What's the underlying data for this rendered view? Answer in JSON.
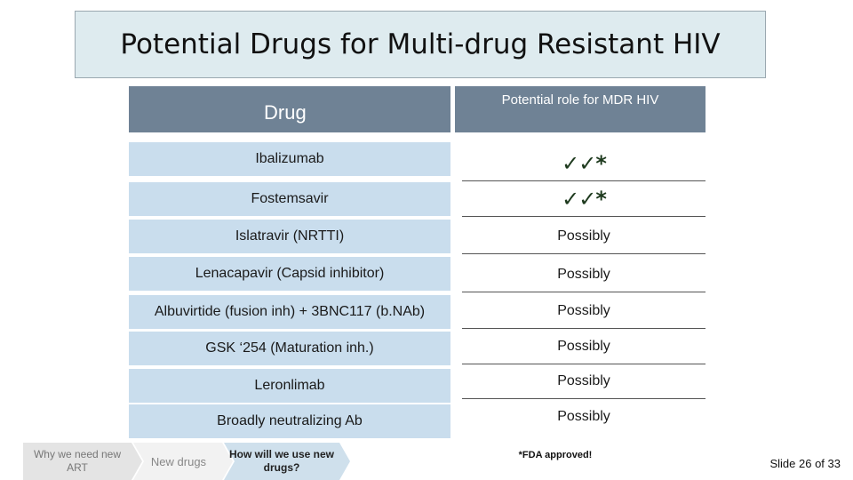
{
  "title": "Potential Drugs for Multi-drug Resistant HIV",
  "table": {
    "header_drug": "Drug",
    "header_role": "Potential role for MDR HIV",
    "rows": [
      {
        "drug": "Ibalizumab",
        "role": "✓✓*"
      },
      {
        "drug": "Fostemsavir",
        "role": "✓✓*"
      },
      {
        "drug": "Islatravir (NRTTI)",
        "role": "Possibly"
      },
      {
        "drug": "Lenacapavir (Capsid inhibitor)",
        "role": "Possibly"
      },
      {
        "drug": "Albuvirtide (fusion inh) + 3BNC117 (b.NAb)",
        "role": "Possibly"
      },
      {
        "drug": "GSK ‘254 (Maturation inh.)",
        "role": "Possibly"
      },
      {
        "drug": "Leronlimab",
        "role": "Possibly"
      },
      {
        "drug": "Broadly neutralizing Ab",
        "role": "Possibly"
      }
    ]
  },
  "footer": {
    "nav_steps": [
      "Why we need new ART",
      "New drugs",
      "How will we use new drugs?"
    ],
    "note": "*FDA approved!",
    "slide_number": "Slide 26 of 33"
  },
  "colors": {
    "header_bg": "#6f8295",
    "row_bg": "#c9dded",
    "title_bg": "#deebef",
    "nav_arrow_1": "#e4e4e4",
    "nav_arrow_2": "#f2f2f2",
    "nav_arrow_3": "#cfe0ec"
  }
}
